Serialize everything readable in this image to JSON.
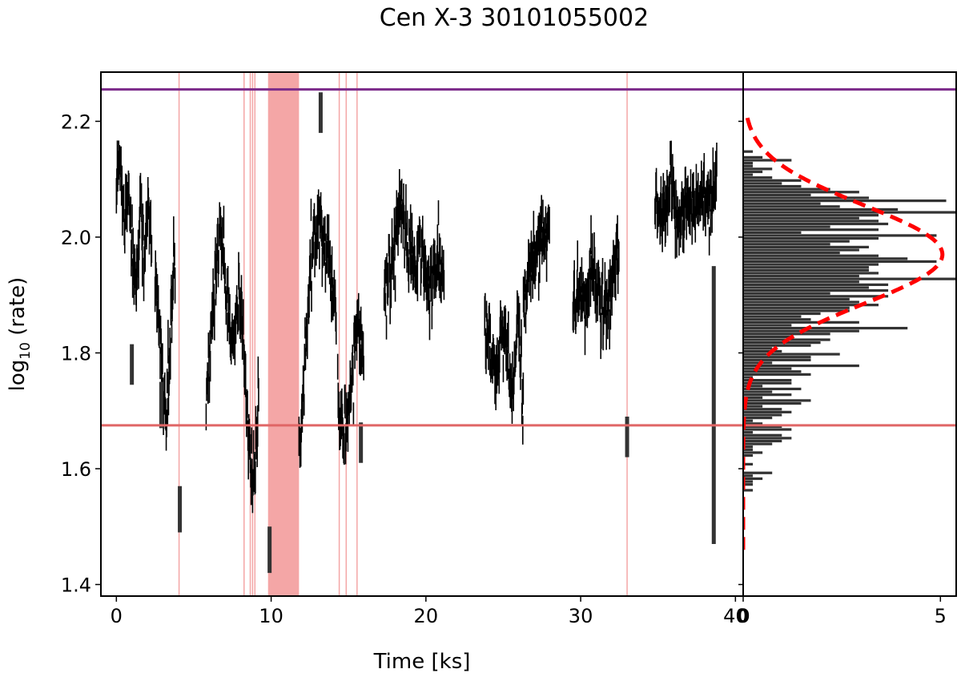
{
  "chart_data": {
    "type": "line",
    "title": "Cen X-3 30101055002",
    "colors": {
      "lightcurve": "#000000",
      "flare_band": "#f4a6a6",
      "threshold_low": "#e06666",
      "threshold_high": "#7b2a8a",
      "gaussian_fit": "#ff0000",
      "histogram": "#000000"
    },
    "panels": [
      {
        "name": "lightcurve",
        "xlabel": "Time [ks]",
        "ylabel_main": "log",
        "ylabel_sub": "10",
        "ylabel_tail": " (rate)",
        "xlim": [
          -1.0,
          40.5
        ],
        "ylim": [
          1.38,
          2.285
        ],
        "xticks": [
          0,
          10,
          20,
          30,
          40
        ],
        "xtick_labels": [
          "0",
          "10",
          "20",
          "30",
          "40"
        ],
        "yticks": [
          1.4,
          1.6,
          1.8,
          2.0,
          2.2
        ],
        "ytick_labels": [
          "1.4",
          "1.6",
          "1.8",
          "2.0",
          "2.2"
        ],
        "segments": [
          {
            "x_start": 0.0,
            "x_end": 2.3,
            "y_levels": [
              2.08,
              2.15,
              2.02,
              2.1,
              1.98,
              1.92,
              2.05,
              1.96,
              2.08,
              1.95
            ],
            "noise": 0.05
          },
          {
            "x_start": 2.5,
            "x_end": 3.8,
            "y_levels": [
              1.92,
              1.86,
              1.8,
              1.74,
              1.68,
              1.78,
              1.9,
              1.95
            ],
            "noise": 0.06
          },
          {
            "x_start": 5.8,
            "x_end": 8.2,
            "y_levels": [
              1.7,
              1.82,
              1.95,
              2.02,
              1.94,
              1.86,
              1.8,
              1.9,
              1.84
            ],
            "noise": 0.05
          },
          {
            "x_start": 8.2,
            "x_end": 9.2,
            "y_levels": [
              1.82,
              1.72,
              1.64,
              1.58,
              1.62,
              1.7
            ],
            "noise": 0.05
          },
          {
            "x_start": 11.8,
            "x_end": 14.2,
            "y_levels": [
              1.62,
              1.8,
              1.95,
              2.05,
              2.0,
              1.95,
              1.88
            ],
            "noise": 0.05
          },
          {
            "x_start": 14.3,
            "x_end": 16.0,
            "y_levels": [
              1.72,
              1.66,
              1.74,
              1.86,
              1.82
            ],
            "noise": 0.05
          },
          {
            "x_start": 17.3,
            "x_end": 21.2,
            "y_levels": [
              1.88,
              1.96,
              2.05,
              2.0,
              1.94,
              1.98,
              1.9,
              1.96,
              1.92
            ],
            "noise": 0.05
          },
          {
            "x_start": 23.8,
            "x_end": 26.3,
            "y_levels": [
              1.86,
              1.8,
              1.75,
              1.84,
              1.8,
              1.72,
              1.86,
              1.7
            ],
            "noise": 0.05
          },
          {
            "x_start": 26.3,
            "x_end": 28.0,
            "y_levels": [
              1.9,
              1.94,
              1.98,
              2.02,
              2.0
            ],
            "noise": 0.05
          },
          {
            "x_start": 29.5,
            "x_end": 32.5,
            "y_levels": [
              1.86,
              1.92,
              1.88,
              1.95,
              1.9,
              1.85,
              1.92,
              1.98
            ],
            "noise": 0.05
          },
          {
            "x_start": 34.8,
            "x_end": 38.8,
            "y_levels": [
              2.05,
              2.02,
              2.08,
              2.03,
              2.06,
              2.04,
              2.09,
              2.05,
              2.12
            ],
            "noise": 0.05
          }
        ],
        "isolated_bars": [
          {
            "x": 1.0,
            "y_low": 1.745,
            "y_high": 1.815
          },
          {
            "x": 4.1,
            "y_low": 1.49,
            "y_high": 1.57
          },
          {
            "x": 2.9,
            "y_low": 1.67,
            "y_high": 1.75
          },
          {
            "x": 9.9,
            "y_low": 1.42,
            "y_high": 1.5
          },
          {
            "x": 13.2,
            "y_low": 2.18,
            "y_high": 2.25
          },
          {
            "x": 15.8,
            "y_low": 1.61,
            "y_high": 1.68
          },
          {
            "x": 33.0,
            "y_low": 1.62,
            "y_high": 1.69
          },
          {
            "x": 38.6,
            "y_low": 1.47,
            "y_high": 1.95
          }
        ],
        "flare_bands": [
          {
            "x_start": 9.8,
            "x_end": 11.8
          }
        ],
        "flare_lines": [
          4.05,
          8.25,
          8.65,
          8.8,
          8.95,
          14.4,
          14.85,
          15.55,
          33.0
        ],
        "hlines": [
          {
            "y": 1.675,
            "color_key": "threshold_low"
          },
          {
            "y": 2.255,
            "color_key": "threshold_high"
          }
        ]
      },
      {
        "name": "histogram",
        "xlim": [
          0,
          5.4
        ],
        "xticks": [
          0,
          5
        ],
        "xtick_labels": [
          "0",
          "5"
        ],
        "gaussian": {
          "amplitude": 5.05,
          "mean": 1.97,
          "sigma": 0.085
        },
        "hist_range": [
          1.46,
          2.21
        ],
        "hist_bins": 150
      }
    ]
  }
}
